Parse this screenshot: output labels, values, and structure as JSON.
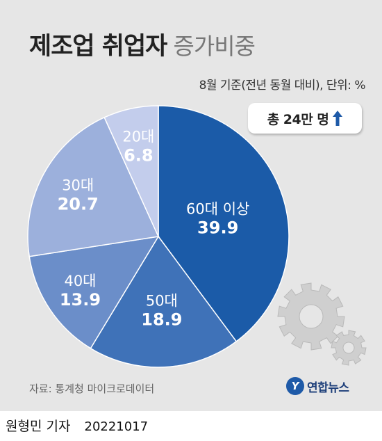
{
  "title_bold": "제조업 취업자",
  "title_light": "증가비중",
  "subtitle": "8월 기준(전년 동월 대비), 단위: %",
  "total_label": "총 24만 명",
  "source": "자료: 통계청 마이크로데이터",
  "logo_text": "연합뉴스",
  "logo_mark": "Y",
  "byline_name": "원형민 기자",
  "byline_date": "20221017",
  "colors": {
    "background": "#e6e6e6",
    "arrow": "#1e5aa8",
    "gear": "#cfcfcf"
  },
  "chart_data": {
    "type": "pie",
    "title": "제조업 취업자 증가비중",
    "unit": "%",
    "start": "12 o'clock, clockwise",
    "slices": [
      {
        "label": "60대 이상",
        "value": 39.9,
        "color": "#1b5ba8"
      },
      {
        "label": "50대",
        "value": 18.9,
        "color": "#3f72b8"
      },
      {
        "label": "40대",
        "value": 13.9,
        "color": "#6b8ec9"
      },
      {
        "label": "30대",
        "value": 20.7,
        "color": "#9cb0dc"
      },
      {
        "label": "20대",
        "value": 6.8,
        "color": "#c3cdec"
      }
    ]
  }
}
